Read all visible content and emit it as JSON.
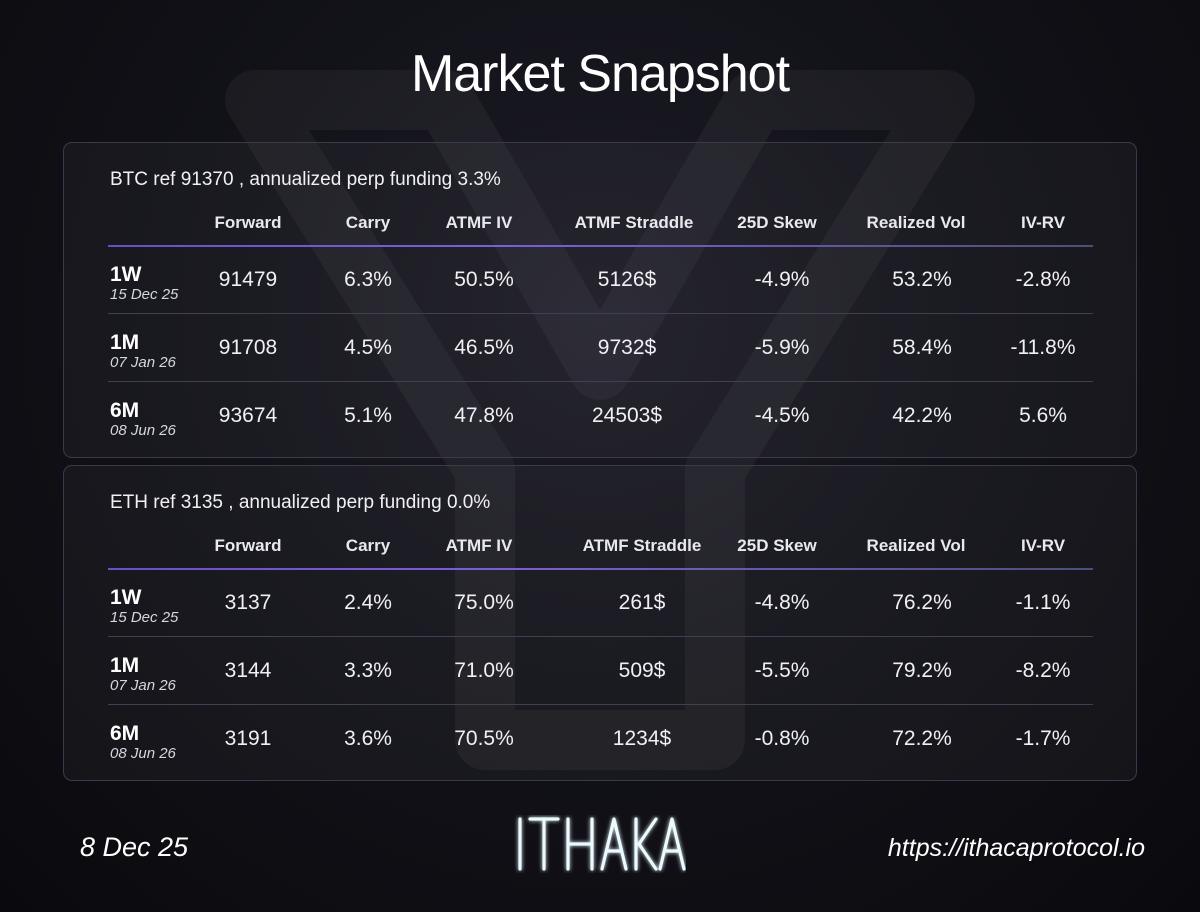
{
  "title": "Market Snapshot",
  "columns": [
    "Forward",
    "Carry",
    "ATMF IV",
    "ATMF Straddle",
    "25D Skew",
    "Realized Vol",
    "IV-RV"
  ],
  "btc": {
    "header": "BTC ref 91370 , annualized perp funding 3.3%",
    "rows": [
      {
        "tenor": "1W",
        "expiry": "15 Dec 25",
        "forward": "91479",
        "carry": "6.3%",
        "atmf_iv": "50.5%",
        "straddle": "5126$",
        "skew": "-4.9%",
        "rv": "53.2%",
        "iv_rv": "-2.8%"
      },
      {
        "tenor": "1M",
        "expiry": "07 Jan 26",
        "forward": "91708",
        "carry": "4.5%",
        "atmf_iv": "46.5%",
        "straddle": "9732$",
        "skew": "-5.9%",
        "rv": "58.4%",
        "iv_rv": "-11.8%"
      },
      {
        "tenor": "6M",
        "expiry": "08 Jun 26",
        "forward": "93674",
        "carry": "5.1%",
        "atmf_iv": "47.8%",
        "straddle": "24503$",
        "skew": "-4.5%",
        "rv": "42.2%",
        "iv_rv": "5.6%"
      }
    ]
  },
  "eth": {
    "header": "ETH ref 3135 , annualized perp funding 0.0%",
    "rows": [
      {
        "tenor": "1W",
        "expiry": "15 Dec 25",
        "forward": "3137",
        "carry": "2.4%",
        "atmf_iv": "75.0%",
        "straddle": "261$",
        "skew": "-4.8%",
        "rv": "76.2%",
        "iv_rv": "-1.1%"
      },
      {
        "tenor": "1M",
        "expiry": "07 Jan 26",
        "forward": "3144",
        "carry": "3.3%",
        "atmf_iv": "71.0%",
        "straddle": "509$",
        "skew": "-5.5%",
        "rv": "79.2%",
        "iv_rv": "-8.2%"
      },
      {
        "tenor": "6M",
        "expiry": "08 Jun 26",
        "forward": "3191",
        "carry": "3.6%",
        "atmf_iv": "70.5%",
        "straddle": "1234$",
        "skew": "-0.8%",
        "rv": "72.2%",
        "iv_rv": "-1.7%"
      }
    ]
  },
  "footer": {
    "date": "8 Dec 25",
    "logo_text": "ITHAKA",
    "url": "https://ithacaprotocol.io"
  },
  "colors": {
    "accent_line": "#6a4fc7",
    "panel_border": "#3a3b4a",
    "logo_glow": "#9fe8ff"
  }
}
